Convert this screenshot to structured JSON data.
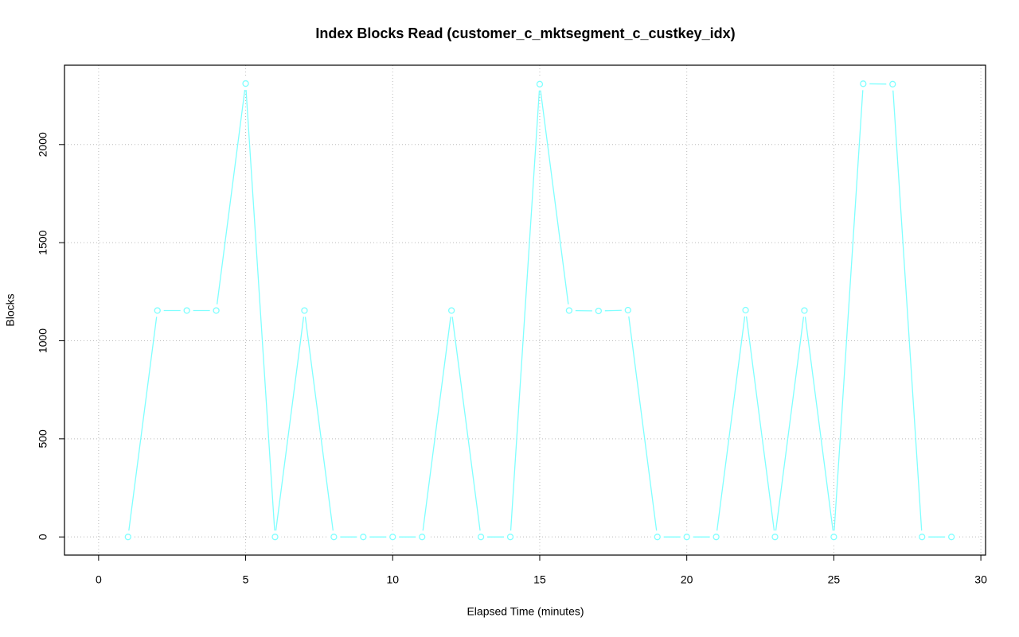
{
  "chart_data": {
    "type": "line",
    "title": "Index Blocks Read (customer_c_mktsegment_c_custkey_idx)",
    "x_label": "Elapsed Time (minutes)",
    "y_label": "Blocks",
    "x": [
      1,
      2,
      3,
      4,
      5,
      6,
      7,
      8,
      9,
      10,
      11,
      12,
      13,
      14,
      15,
      16,
      17,
      18,
      19,
      20,
      21,
      22,
      23,
      24,
      25,
      26,
      27,
      28,
      29
    ],
    "series": [
      {
        "name": "Blocks",
        "color": "#7fffff",
        "values": [
          0,
          1154,
          1154,
          1154,
          2311,
          0,
          1154,
          0,
          0,
          0,
          0,
          1154,
          0,
          0,
          2308,
          1154,
          1152,
          1156,
          0,
          0,
          0,
          1156,
          0,
          1154,
          0,
          2310,
          2308,
          0,
          0
        ]
      }
    ],
    "xlim": [
      -1.16,
      30.16
    ],
    "xticks": [
      0,
      5,
      10,
      15,
      20,
      25,
      30
    ],
    "ylim": [
      -92.5,
      2404.5
    ],
    "yticks": [
      0,
      500,
      1000,
      1500,
      2000
    ],
    "grid": true
  }
}
